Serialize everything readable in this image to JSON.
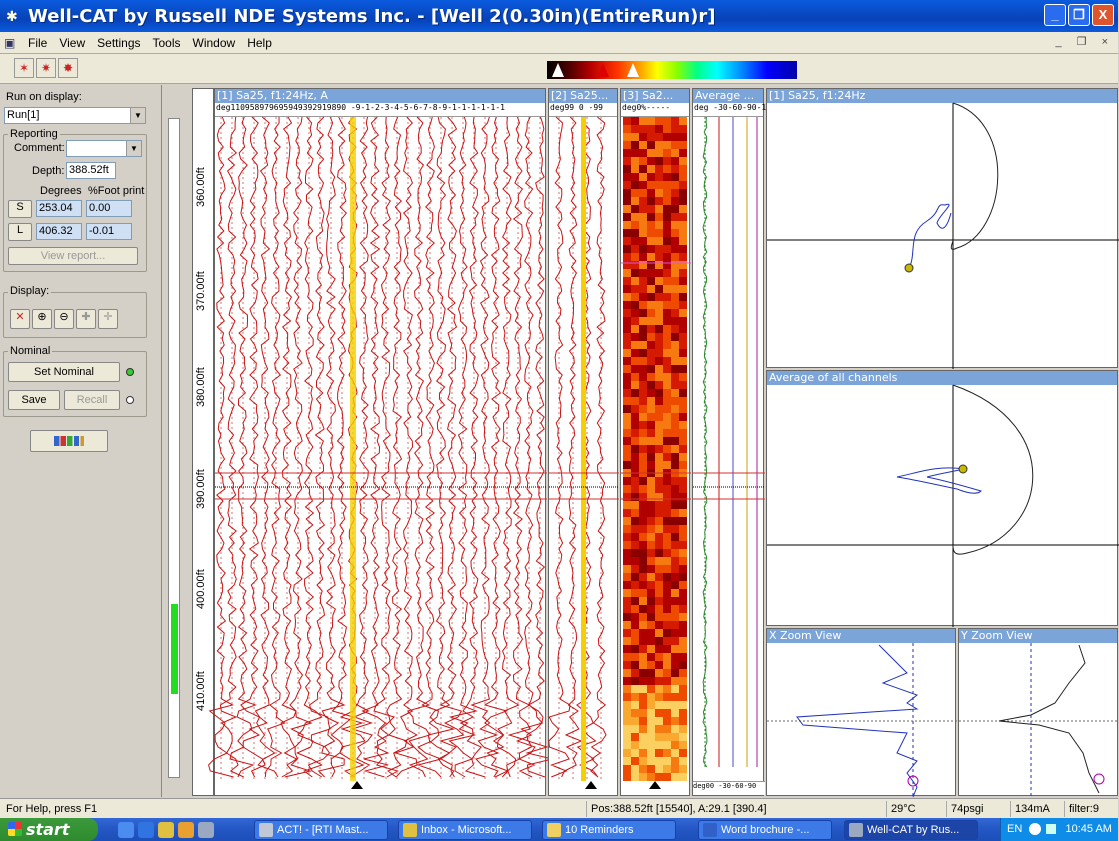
{
  "window": {
    "title": "Well-CAT by Russell NDE Systems Inc. - [Well 2(0.30in)(EntireRun)r]",
    "minimize": "_",
    "restore": "❐",
    "close": "X"
  },
  "menu": {
    "items": [
      "File",
      "View",
      "Settings",
      "Tools",
      "Window",
      "Help"
    ],
    "mdi_controls": "_ ❐ ×"
  },
  "left_panel": {
    "run_label": "Run on display:",
    "run_value": "Run[1]",
    "reporting_label": "Reporting",
    "comment_label": "Comment:",
    "comment_value": "",
    "depth_label": "Depth:",
    "depth_value": "388.52ft",
    "degrees_label": "Degrees",
    "footprint_label": "%Foot print",
    "s_button": "S",
    "s_degrees": "253.04",
    "s_footprint": "0.00",
    "l_button": "L",
    "l_degrees": "406.32",
    "l_footprint": "-0.01",
    "view_report": "View report...",
    "display_label": "Display:",
    "nominal_label": "Nominal",
    "set_nominal": "Set Nominal",
    "save": "Save",
    "recall": "Recall"
  },
  "depth_axis": {
    "ticks": [
      "360.00ft",
      "370.00ft",
      "380.00ft",
      "390.00ft",
      "400.00ft",
      "410.00ft"
    ]
  },
  "tracks": {
    "t1_title": "[1] Sa25, f1:24Hz, A",
    "t1_sub": "deg110958979695949392919890 -9-1-2-3-4-5-6-7-8-9-1-1-1-1-1-1",
    "t2_title": "[2] Sa25...",
    "t2_sub": "deg99 0  -99",
    "t3_title": "[3] Sa2...",
    "t3_sub": "deg0%-----",
    "t4_title": "Average ...",
    "t4_sub": "deg  -30-60-90-12",
    "t4_footer": "deg00  -30-60-90"
  },
  "panels": {
    "p1_title": "[1] Sa25, f1:24Hz",
    "p2_title": "Average of all channels",
    "p3_title": "X Zoom View",
    "p4_title": "Y Zoom View"
  },
  "status": {
    "help": "For Help, press F1",
    "pos": "Pos:388.52ft [15540], A:29.1 [390.4]",
    "temp": "29°C",
    "pressure": "74psgi",
    "current": "134mA",
    "filter": "filter:9"
  },
  "taskbar": {
    "start": "start",
    "tasks": [
      "ACT! - [RTI Mast...",
      "Inbox - Microsoft...",
      "10 Reminders",
      "Word brochure -...",
      "Well-CAT by Rus..."
    ],
    "tray_lang": "EN",
    "clock": "10:45 AM"
  },
  "colors": {
    "title_blue": "#0842b8",
    "trace_red": "#c81414",
    "highlight_yellow": "#f5d000",
    "head_blue": "#7ba4d8"
  }
}
